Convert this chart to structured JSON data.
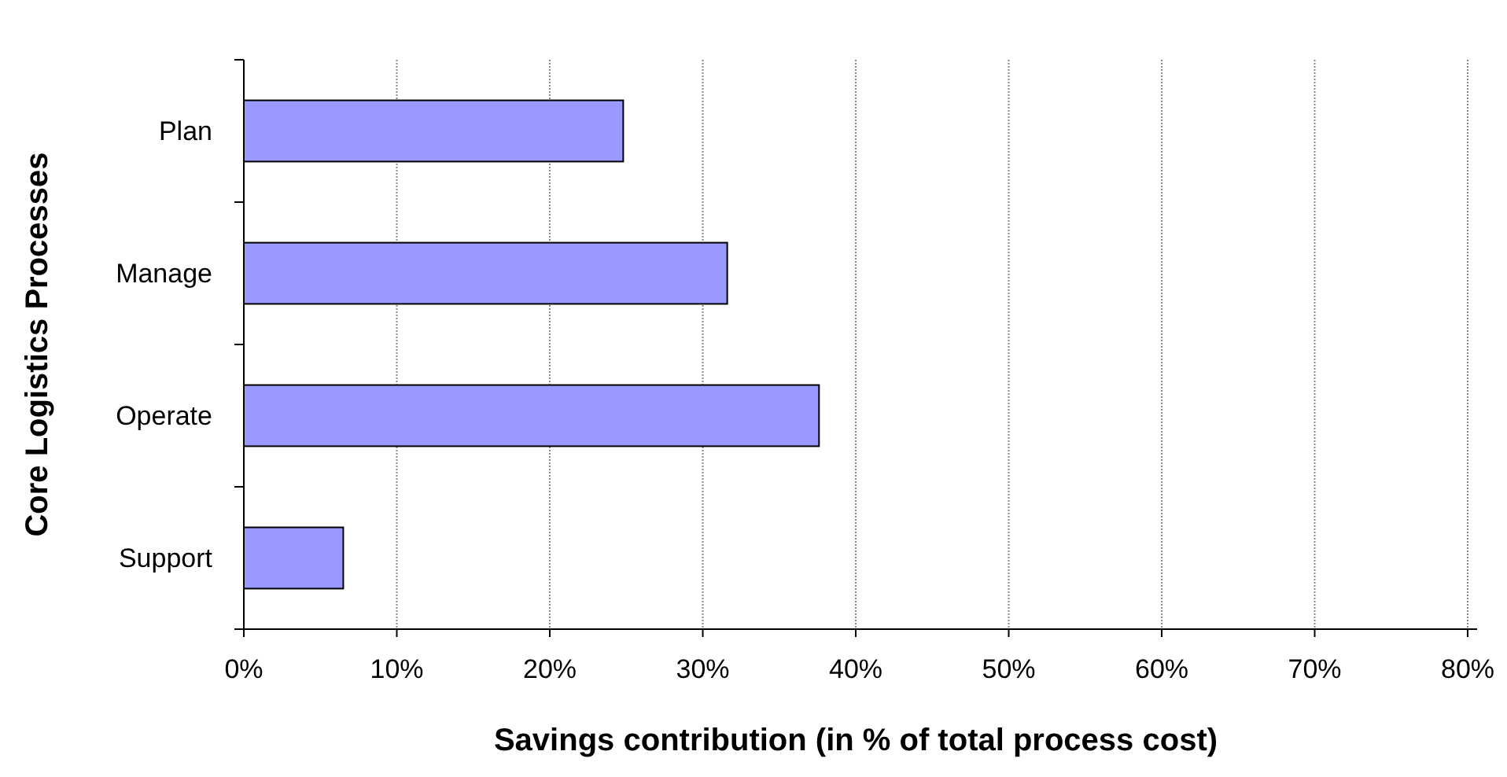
{
  "chart_data": {
    "type": "bar",
    "orientation": "horizontal",
    "xlabel": "Savings contribution (in % of total process cost)",
    "ylabel": "Core Logistics Processes",
    "categories": [
      "Plan",
      "Manage",
      "Operate",
      "Support"
    ],
    "values": [
      24.8,
      31.6,
      37.6,
      6.5
    ],
    "color": "#9999ff",
    "xlim": [
      0,
      80
    ],
    "xticks": [
      {
        "value": 0,
        "label": "0%"
      },
      {
        "value": 10,
        "label": "10%"
      },
      {
        "value": 20,
        "label": "20%"
      },
      {
        "value": 30,
        "label": "30%"
      },
      {
        "value": 40,
        "label": "40%"
      },
      {
        "value": 50,
        "label": "50%"
      },
      {
        "value": 60,
        "label": "60%"
      },
      {
        "value": 70,
        "label": "70%"
      },
      {
        "value": 80,
        "label": "80%"
      }
    ],
    "grid": "x"
  }
}
